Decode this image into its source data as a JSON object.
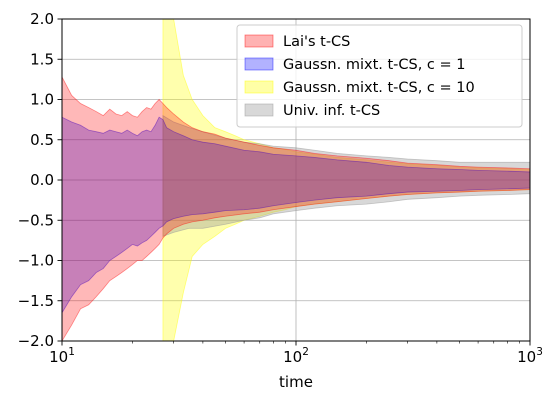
{
  "chart_data": {
    "type": "area",
    "xlabel": "time",
    "ylabel": "",
    "title": "",
    "xscale": "log",
    "xlim": [
      10,
      1000
    ],
    "ylim": [
      -2.0,
      2.0
    ],
    "grid": true,
    "legend_position": "top-right",
    "x_ticks": [
      {
        "value": 10,
        "base": "10",
        "exp": "1"
      },
      {
        "value": 100,
        "base": "10",
        "exp": "2"
      },
      {
        "value": 1000,
        "base": "10",
        "exp": "3"
      }
    ],
    "y_ticks": [
      {
        "value": -2.0,
        "label": "−2.0"
      },
      {
        "value": -1.5,
        "label": "−1.5"
      },
      {
        "value": -1.0,
        "label": "−1.0"
      },
      {
        "value": -0.5,
        "label": "−0.5"
      },
      {
        "value": 0.0,
        "label": "0.0"
      },
      {
        "value": 0.5,
        "label": "0.5"
      },
      {
        "value": 1.0,
        "label": "1.0"
      },
      {
        "value": 1.5,
        "label": "1.5"
      },
      {
        "value": 2.0,
        "label": "2.0"
      }
    ],
    "series": [
      {
        "name": "Gaussn. mixt. t-CS, c = 10",
        "color": "#ffff00",
        "opacity": 0.32,
        "x": [
          27,
          28,
          30,
          33,
          36,
          40,
          45,
          50,
          55,
          60,
          70,
          80,
          90,
          100,
          120,
          150,
          200,
          250,
          300,
          400,
          500,
          600,
          800,
          1000
        ],
        "upper": [
          2.0,
          2.0,
          2.0,
          1.3,
          1.0,
          0.8,
          0.65,
          0.6,
          0.55,
          0.5,
          0.45,
          0.4,
          0.38,
          0.35,
          0.32,
          0.28,
          0.25,
          0.22,
          0.2,
          0.18,
          0.16,
          0.15,
          0.14,
          0.13
        ],
        "lower": [
          -2.0,
          -2.0,
          -2.0,
          -1.4,
          -0.95,
          -0.8,
          -0.7,
          -0.6,
          -0.55,
          -0.5,
          -0.45,
          -0.4,
          -0.37,
          -0.33,
          -0.3,
          -0.27,
          -0.23,
          -0.2,
          -0.18,
          -0.16,
          -0.15,
          -0.14,
          -0.13,
          -0.12
        ]
      },
      {
        "name": "Univ. inf. t-CS",
        "color": "#999999",
        "opacity": 0.38,
        "x": [
          27,
          30,
          35,
          40,
          50,
          60,
          70,
          80,
          100,
          120,
          150,
          200,
          250,
          300,
          400,
          500,
          600,
          800,
          1000
        ],
        "upper": [
          0.8,
          0.72,
          0.65,
          0.6,
          0.52,
          0.47,
          0.45,
          0.42,
          0.4,
          0.37,
          0.33,
          0.3,
          0.28,
          0.26,
          0.24,
          0.22,
          0.22,
          0.22,
          0.22
        ],
        "lower": [
          -0.7,
          -0.65,
          -0.6,
          -0.6,
          -0.55,
          -0.5,
          -0.47,
          -0.42,
          -0.38,
          -0.35,
          -0.32,
          -0.3,
          -0.27,
          -0.24,
          -0.22,
          -0.2,
          -0.19,
          -0.18,
          -0.17
        ]
      },
      {
        "name": "Gaussn. mixt. t-CS, c = 1",
        "color": "#0000ff",
        "opacity": 0.3,
        "x": [
          10,
          11,
          12,
          13,
          14,
          15,
          16,
          17,
          18,
          19,
          20,
          21,
          22,
          23,
          24,
          25,
          26,
          27,
          28,
          30,
          33,
          36,
          40,
          45,
          50,
          60,
          70,
          80,
          100,
          120,
          150,
          200,
          250,
          300,
          400,
          500,
          600,
          800,
          1000
        ],
        "upper": [
          0.78,
          0.72,
          0.68,
          0.62,
          0.6,
          0.58,
          0.62,
          0.6,
          0.58,
          0.62,
          0.58,
          0.55,
          0.6,
          0.62,
          0.6,
          0.68,
          0.78,
          0.75,
          0.65,
          0.6,
          0.55,
          0.5,
          0.47,
          0.45,
          0.42,
          0.37,
          0.35,
          0.32,
          0.3,
          0.28,
          0.25,
          0.22,
          0.18,
          0.16,
          0.14,
          0.13,
          0.12,
          0.11,
          0.1
        ],
        "lower": [
          -1.65,
          -1.45,
          -1.3,
          -1.25,
          -1.15,
          -1.1,
          -1.0,
          -0.95,
          -0.9,
          -0.85,
          -0.8,
          -0.82,
          -0.78,
          -0.75,
          -0.7,
          -0.65,
          -0.6,
          -0.57,
          -0.52,
          -0.48,
          -0.45,
          -0.43,
          -0.42,
          -0.4,
          -0.38,
          -0.37,
          -0.35,
          -0.32,
          -0.28,
          -0.25,
          -0.22,
          -0.2,
          -0.17,
          -0.15,
          -0.14,
          -0.13,
          -0.12,
          -0.11,
          -0.1
        ]
      },
      {
        "name": "Lai's t-CS",
        "color": "#ff0000",
        "opacity": 0.28,
        "x": [
          10,
          11,
          12,
          13,
          14,
          15,
          16,
          17,
          18,
          19,
          20,
          21,
          22,
          23,
          24,
          25,
          26,
          27,
          28,
          30,
          33,
          36,
          40,
          45,
          50,
          60,
          70,
          80,
          100,
          120,
          150,
          200,
          250,
          300,
          400,
          500,
          600,
          800,
          1000
        ],
        "upper": [
          1.28,
          1.05,
          0.95,
          0.9,
          0.85,
          0.8,
          0.88,
          0.82,
          0.8,
          0.85,
          0.8,
          0.78,
          0.85,
          0.9,
          0.88,
          0.95,
          1.0,
          0.95,
          0.9,
          0.82,
          0.72,
          0.65,
          0.6,
          0.57,
          0.52,
          0.47,
          0.43,
          0.4,
          0.37,
          0.33,
          0.3,
          0.27,
          0.24,
          0.21,
          0.19,
          0.17,
          0.16,
          0.15,
          0.14
        ],
        "lower": [
          -2.0,
          -1.8,
          -1.6,
          -1.55,
          -1.45,
          -1.35,
          -1.25,
          -1.2,
          -1.15,
          -1.1,
          -1.05,
          -1.0,
          -1.0,
          -0.95,
          -0.9,
          -0.85,
          -0.8,
          -0.72,
          -0.67,
          -0.6,
          -0.55,
          -0.52,
          -0.5,
          -0.47,
          -0.45,
          -0.42,
          -0.4,
          -0.37,
          -0.33,
          -0.3,
          -0.27,
          -0.23,
          -0.2,
          -0.18,
          -0.16,
          -0.15,
          -0.14,
          -0.13,
          -0.12
        ]
      }
    ],
    "legend": [
      {
        "label": "Lai's t-CS",
        "color": "#ff0000",
        "opacity": 0.3
      },
      {
        "label": "Gaussn. mixt. t-CS, c = 1",
        "color": "#0000ff",
        "opacity": 0.3
      },
      {
        "label": "Gaussn. mixt. t-CS, c = 10",
        "color": "#ffff00",
        "opacity": 0.35
      },
      {
        "label": "Univ. inf. t-CS",
        "color": "#999999",
        "opacity": 0.38
      }
    ]
  }
}
